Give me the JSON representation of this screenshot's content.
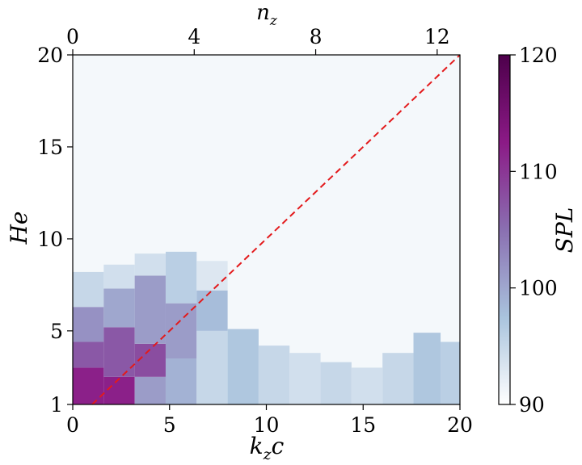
{
  "chart_data": {
    "type": "heatmap",
    "x_axis": {
      "label_main": "k",
      "label_sub": "z",
      "label_suffix": "c",
      "range": [
        0,
        20
      ],
      "ticks": [
        0,
        5,
        10,
        15,
        20
      ],
      "tick_labels": [
        "0",
        "5",
        "10",
        "15",
        "20"
      ]
    },
    "x2_axis": {
      "label_main": "n",
      "label_sub": "z",
      "range": [
        0,
        12.75
      ],
      "ticks": [
        0,
        4,
        8,
        12
      ],
      "tick_labels": [
        "0",
        "4",
        "8",
        "12"
      ]
    },
    "y_axis": {
      "label": "He",
      "range": [
        1,
        20
      ],
      "ticks": [
        1,
        5,
        10,
        15,
        20
      ],
      "tick_labels": [
        "1",
        "5",
        "10",
        "15",
        "20"
      ]
    },
    "colorbar": {
      "label": "SPL",
      "range": [
        90,
        120
      ],
      "ticks": [
        90,
        100,
        110,
        120
      ],
      "tick_labels": [
        "90",
        "100",
        "110",
        "120"
      ],
      "colors": [
        "#ffffff",
        "#a9c3dd",
        "#8a6fb1",
        "#8b1a86",
        "#4d004b"
      ]
    },
    "reference_line": {
      "style": "dashed",
      "color": "#e31a1c",
      "points": [
        [
          1,
          1
        ],
        [
          20,
          20
        ]
      ]
    },
    "heatmap_columns": [
      {
        "x0": 0,
        "x1": 1.6,
        "segments": [
          {
            "y0": 1,
            "y1": 3,
            "spl": 112
          },
          {
            "y0": 3,
            "y1": 4.4,
            "spl": 107
          },
          {
            "y0": 4.4,
            "y1": 6.3,
            "spl": 102
          },
          {
            "y0": 6.3,
            "y1": 8.2,
            "spl": 95
          }
        ]
      },
      {
        "x0": 1.6,
        "x1": 3.2,
        "segments": [
          {
            "y0": 1,
            "y1": 2.5,
            "spl": 112
          },
          {
            "y0": 2.5,
            "y1": 5.2,
            "spl": 107
          },
          {
            "y0": 5.2,
            "y1": 7.3,
            "spl": 100
          },
          {
            "y0": 7.3,
            "y1": 8.6,
            "spl": 94
          }
        ]
      },
      {
        "x0": 3.2,
        "x1": 4.8,
        "segments": [
          {
            "y0": 1,
            "y1": 2.5,
            "spl": 101
          },
          {
            "y0": 2.5,
            "y1": 4.3,
            "spl": 108
          },
          {
            "y0": 4.3,
            "y1": 8,
            "spl": 101
          },
          {
            "y0": 8,
            "y1": 9.2,
            "spl": 94
          }
        ]
      },
      {
        "x0": 4.8,
        "x1": 6.4,
        "segments": [
          {
            "y0": 1,
            "y1": 3.5,
            "spl": 99
          },
          {
            "y0": 3.5,
            "y1": 6.5,
            "spl": 101
          },
          {
            "y0": 6.5,
            "y1": 9.3,
            "spl": 96
          }
        ]
      },
      {
        "x0": 6.4,
        "x1": 8,
        "segments": [
          {
            "y0": 1,
            "y1": 5,
            "spl": 95
          },
          {
            "y0": 5,
            "y1": 7.2,
            "spl": 98
          },
          {
            "y0": 7.2,
            "y1": 8.8,
            "spl": 93
          }
        ]
      },
      {
        "x0": 8,
        "x1": 9.6,
        "segments": [
          {
            "y0": 1,
            "y1": 5.1,
            "spl": 97
          }
        ]
      },
      {
        "x0": 9.6,
        "x1": 11.2,
        "segments": [
          {
            "y0": 1,
            "y1": 4.2,
            "spl": 95
          }
        ]
      },
      {
        "x0": 11.2,
        "x1": 12.8,
        "segments": [
          {
            "y0": 1,
            "y1": 3.8,
            "spl": 94
          }
        ]
      },
      {
        "x0": 12.8,
        "x1": 14.4,
        "segments": [
          {
            "y0": 1,
            "y1": 3.3,
            "spl": 95
          }
        ]
      },
      {
        "x0": 14.4,
        "x1": 16,
        "segments": [
          {
            "y0": 1,
            "y1": 3,
            "spl": 94
          }
        ]
      },
      {
        "x0": 16,
        "x1": 17.6,
        "segments": [
          {
            "y0": 1,
            "y1": 3.8,
            "spl": 95
          }
        ]
      },
      {
        "x0": 17.6,
        "x1": 19,
        "segments": [
          {
            "y0": 1,
            "y1": 4.9,
            "spl": 97
          }
        ]
      },
      {
        "x0": 19,
        "x1": 20,
        "segments": [
          {
            "y0": 1,
            "y1": 4.4,
            "spl": 96
          }
        ]
      }
    ]
  }
}
